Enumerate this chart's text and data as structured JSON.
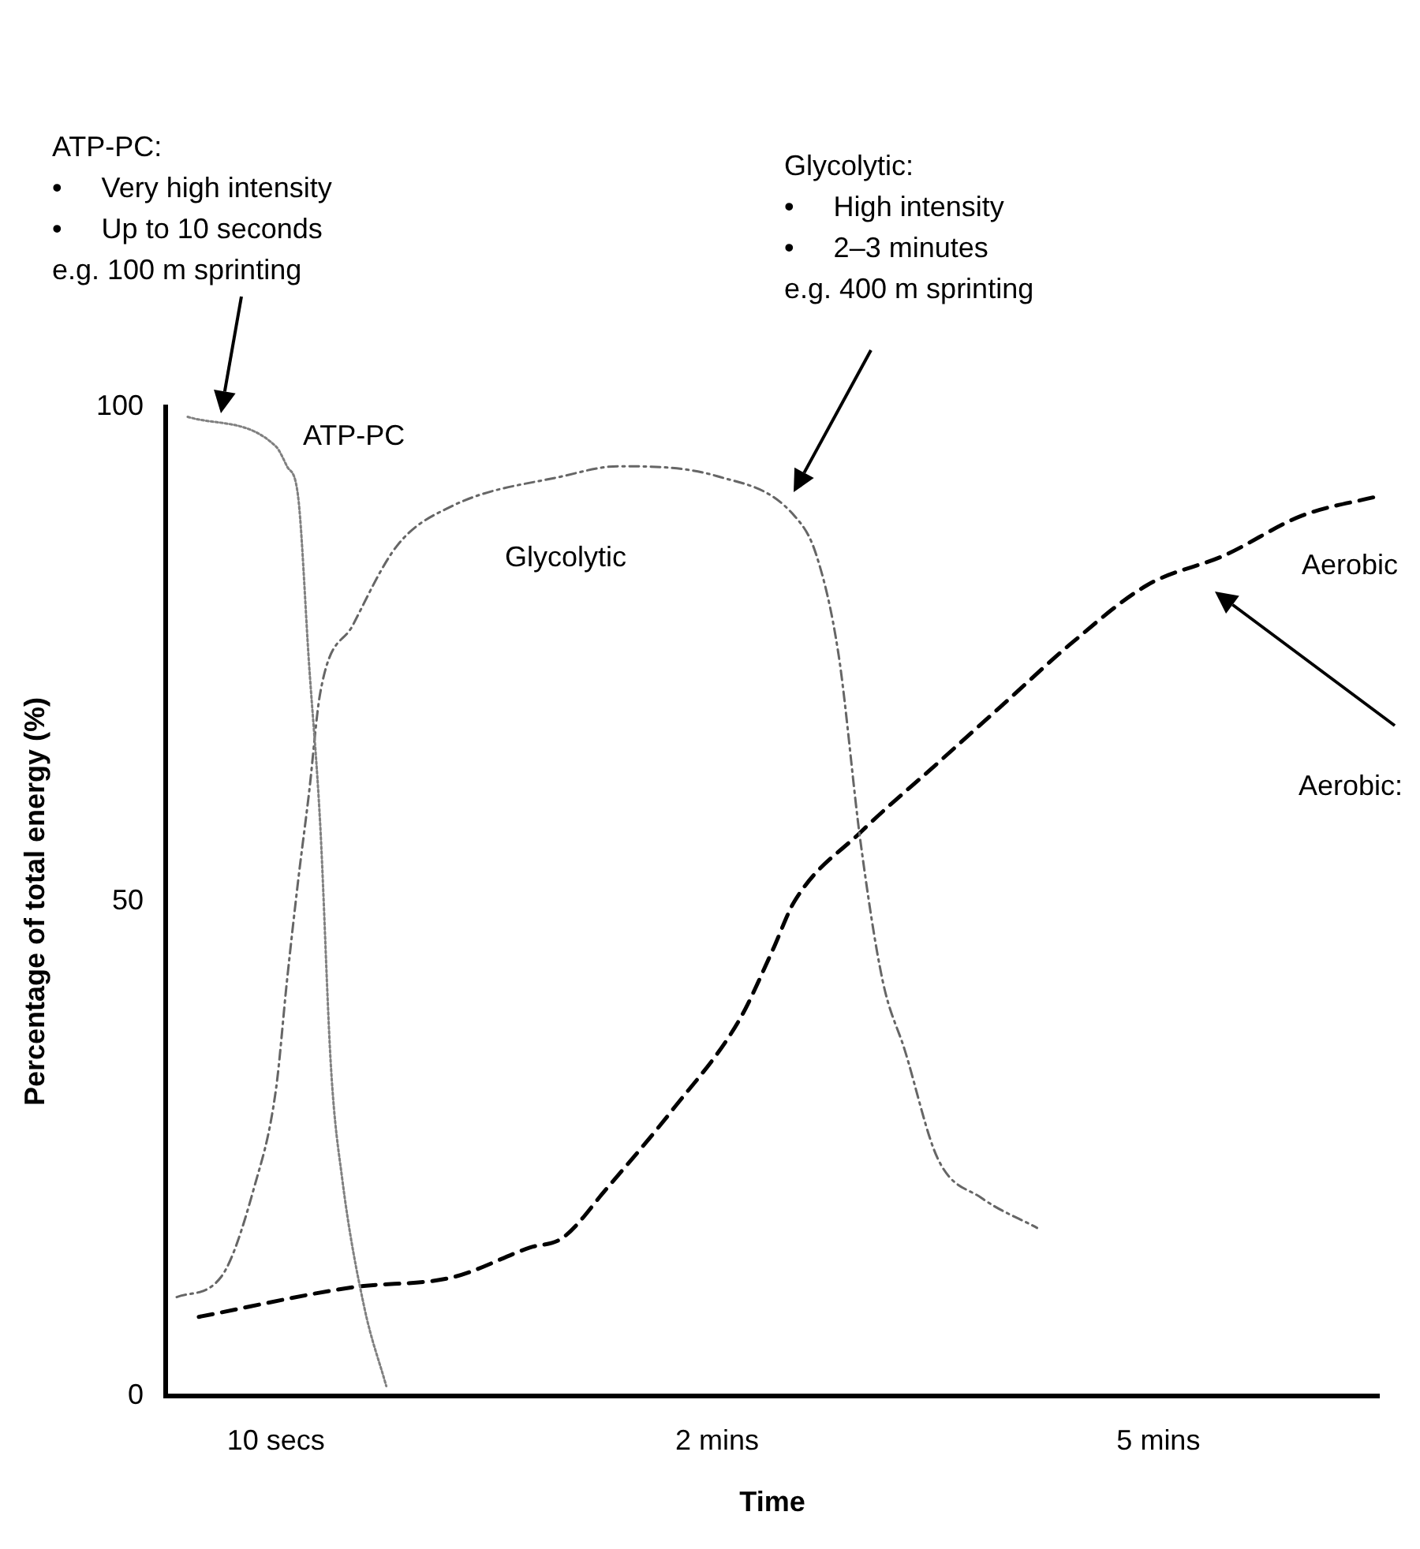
{
  "chart_data": {
    "type": "line",
    "xlabel": "Time",
    "ylabel": "Percentage of total energy (%)",
    "categories": [
      null,
      null,
      null,
      null,
      null,
      null,
      null,
      null,
      null,
      null,
      "10 secs",
      null,
      null,
      null,
      null,
      null,
      null,
      null,
      null,
      null,
      null,
      null,
      null,
      null,
      null,
      null,
      null,
      null,
      null,
      null,
      null,
      null,
      null,
      null,
      null,
      null,
      null,
      null,
      null,
      null,
      null,
      null,
      null,
      null,
      null,
      null,
      null,
      null,
      null,
      null,
      "2 mins",
      null,
      null,
      null,
      null,
      null,
      null,
      null,
      null,
      null,
      null,
      null,
      null,
      null,
      null,
      null,
      null,
      null,
      null,
      null,
      null,
      null,
      null,
      null,
      null,
      null,
      null,
      null,
      null,
      null,
      null,
      null,
      null,
      null,
      null,
      null,
      null,
      null,
      null,
      null,
      "5 mins",
      null,
      null,
      null,
      null,
      null,
      null,
      null,
      null,
      null,
      null,
      null,
      null,
      null,
      null,
      null,
      null,
      null,
      null,
      null,
      null
    ],
    "ylim": [
      0,
      100
    ],
    "yticks": [
      0,
      50,
      100
    ],
    "grid": false,
    "legend": false,
    "marker": "none",
    "series": [
      {
        "name": "ATP-PC",
        "color": "#808080",
        "line_style": "dotted",
        "values": [
          null,
          null,
          99,
          null,
          null,
          null,
          null,
          null,
          null,
          null,
          96,
          94,
          91,
          74,
          58,
          33,
          22,
          null,
          9,
          null,
          1,
          null,
          null,
          null,
          null,
          null,
          null,
          null,
          null,
          null,
          null,
          null,
          null,
          null,
          null,
          null,
          null,
          null,
          null,
          null,
          null,
          null,
          null,
          null,
          null,
          null,
          null,
          null,
          null,
          null,
          null,
          null,
          null,
          null,
          null,
          null,
          null,
          null,
          null,
          null,
          null,
          null,
          null,
          null,
          null,
          null,
          null,
          null,
          null,
          null,
          null,
          null,
          null,
          null,
          null,
          null,
          null,
          null,
          null,
          null,
          null,
          null,
          null,
          null,
          null,
          null,
          null,
          null,
          null,
          null,
          null,
          null,
          null,
          null,
          null,
          null,
          null,
          null,
          null,
          null,
          null,
          null,
          null,
          null,
          null,
          null,
          null,
          null,
          null,
          null,
          null
        ]
      },
      {
        "name": "Glycolytic",
        "color": "#666666",
        "line_style": "dashdot",
        "values": [
          null,
          10,
          null,
          null,
          null,
          12,
          null,
          null,
          21,
          null,
          31,
          42,
          52,
          61,
          71,
          null,
          null,
          78,
          null,
          null,
          null,
          86,
          null,
          null,
          null,
          null,
          90,
          null,
          null,
          null,
          null,
          null,
          null,
          null,
          null,
          null,
          93,
          null,
          null,
          null,
          null,
          94,
          null,
          null,
          null,
          null,
          null,
          null,
          null,
          null,
          93,
          null,
          null,
          null,
          null,
          null,
          null,
          89,
          null,
          85,
          null,
          75,
          null,
          56,
          null,
          42,
          null,
          35,
          null,
          null,
          24,
          null,
          null,
          null,
          20,
          null,
          null,
          null,
          null,
          17,
          null,
          null,
          null,
          null,
          null,
          null,
          null,
          null,
          null,
          null,
          null,
          null,
          null,
          null,
          null,
          null,
          null,
          null,
          null,
          null,
          null,
          null,
          null,
          null,
          null,
          null,
          null,
          null,
          null,
          null,
          null
        ]
      },
      {
        "name": "Aerobic",
        "color": "#000000",
        "line_style": "dashed",
        "values": [
          null,
          null,
          null,
          8,
          null,
          null,
          null,
          null,
          null,
          null,
          null,
          null,
          null,
          null,
          null,
          null,
          null,
          11,
          null,
          null,
          null,
          null,
          null,
          null,
          null,
          null,
          12,
          null,
          null,
          null,
          null,
          null,
          null,
          15,
          null,
          null,
          16,
          null,
          null,
          null,
          21,
          null,
          null,
          null,
          null,
          null,
          29,
          null,
          null,
          null,
          null,
          null,
          38,
          null,
          null,
          45,
          null,
          50,
          null,
          null,
          null,
          null,
          null,
          57,
          null,
          null,
          null,
          null,
          null,
          null,
          64,
          null,
          null,
          null,
          null,
          null,
          70,
          null,
          null,
          null,
          null,
          null,
          76,
          null,
          null,
          null,
          null,
          null,
          null,
          82,
          null,
          null,
          null,
          null,
          null,
          null,
          85,
          null,
          null,
          null,
          null,
          null,
          null,
          89,
          null,
          null,
          null,
          null,
          null,
          null,
          91
        ]
      }
    ],
    "annotations": [
      "ATP-PC:\n•     Very high intensity\n•     Up to 10 seconds\ne.g. 100 m sprinting",
      "Glycolytic:\n•     High intensity\n•     2–3 minutes\ne.g. 400 m sprinting",
      "Aerobic:"
    ]
  }
}
